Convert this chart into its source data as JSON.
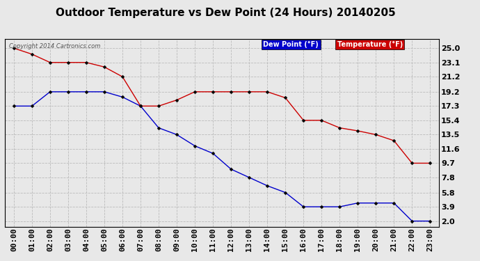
{
  "title": "Outdoor Temperature vs Dew Point (24 Hours) 20140205",
  "copyright": "Copyright 2014 Cartronics.com",
  "x_labels": [
    "00:00",
    "01:00",
    "02:00",
    "03:00",
    "04:00",
    "05:00",
    "06:00",
    "07:00",
    "08:00",
    "09:00",
    "10:00",
    "11:00",
    "12:00",
    "13:00",
    "14:00",
    "15:00",
    "16:00",
    "17:00",
    "18:00",
    "19:00",
    "20:00",
    "21:00",
    "22:00",
    "23:00"
  ],
  "temperature": [
    25.0,
    24.2,
    23.1,
    23.1,
    23.1,
    22.5,
    21.2,
    17.3,
    17.3,
    18.1,
    19.2,
    19.2,
    19.2,
    19.2,
    19.2,
    18.4,
    15.4,
    15.4,
    14.4,
    14.0,
    13.5,
    12.7,
    9.7,
    9.7
  ],
  "dew_point": [
    17.3,
    17.3,
    19.2,
    19.2,
    19.2,
    19.2,
    18.5,
    17.3,
    14.4,
    13.5,
    12.0,
    11.0,
    8.9,
    7.8,
    6.7,
    5.8,
    3.9,
    3.9,
    3.9,
    4.4,
    4.4,
    4.4,
    2.0,
    2.0
  ],
  "y_ticks": [
    2.0,
    3.9,
    5.8,
    7.8,
    9.7,
    11.6,
    13.5,
    15.4,
    17.3,
    19.2,
    21.2,
    23.1,
    25.0
  ],
  "ylim": [
    1.2,
    26.2
  ],
  "temp_color": "#cc0000",
  "dew_color": "#0000cc",
  "background_color": "#e8e8e8",
  "plot_bg_color": "#e8e8e8",
  "grid_color": "#bbbbbb",
  "marker": "D",
  "marker_size": 2.5,
  "legend_dew_bg": "#0000cc",
  "legend_temp_bg": "#cc0000",
  "legend_text_color": "#ffffff",
  "title_fontsize": 11,
  "tick_fontsize": 8,
  "copyright_color": "#555555"
}
